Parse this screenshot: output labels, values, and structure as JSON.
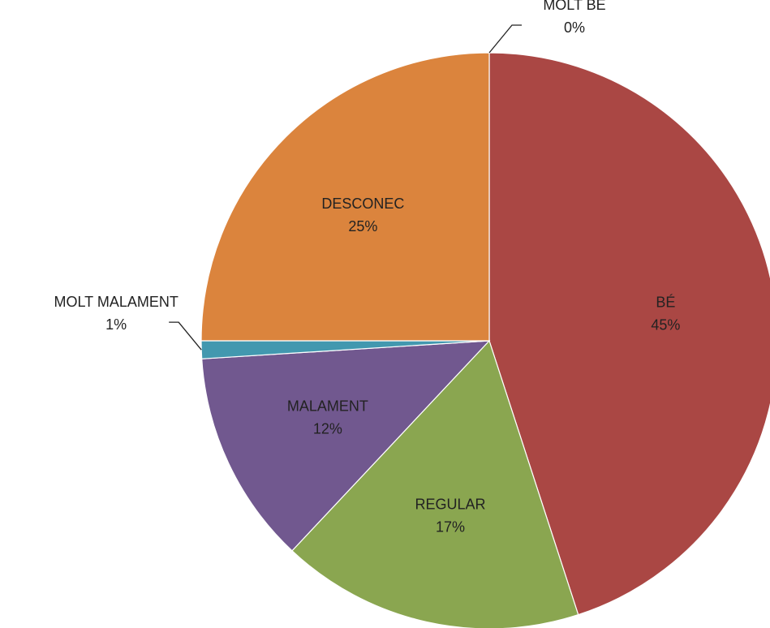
{
  "chart_data": {
    "type": "pie",
    "categories": [
      "MOLT BÉ",
      "BÉ",
      "REGULAR",
      "MALAMENT",
      "MOLT MALAMENT",
      "DESCONEC"
    ],
    "values": [
      0,
      45,
      17,
      12,
      1,
      25
    ],
    "value_labels": [
      "0%",
      "45%",
      "17%",
      "12%",
      "1%",
      "25%"
    ],
    "colors": [
      "#4a7ebb",
      "#aa4744",
      "#8aa650",
      "#71588f",
      "#4298af",
      "#db843d"
    ]
  }
}
